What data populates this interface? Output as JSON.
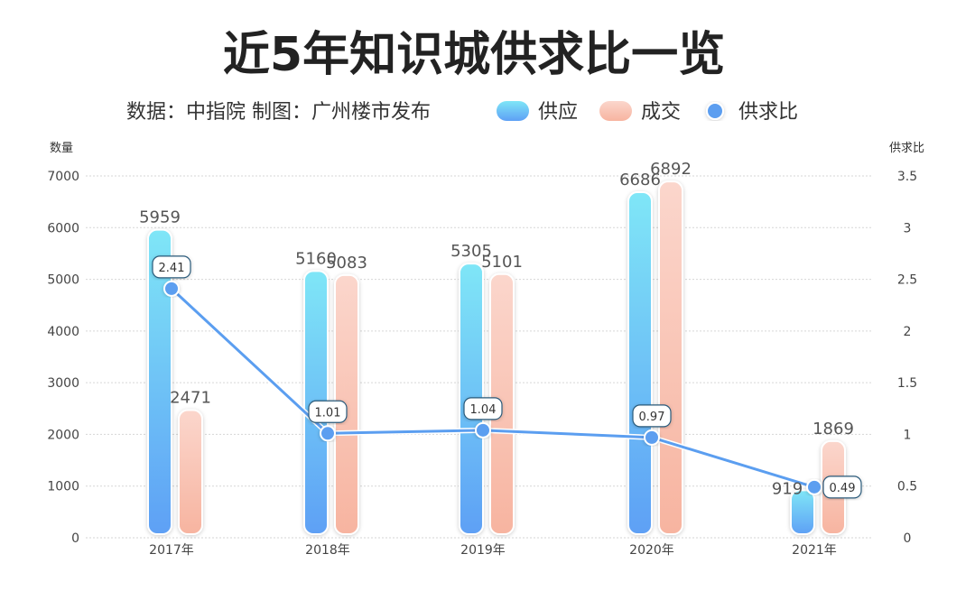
{
  "chart_data": {
    "type": "bar+line",
    "title": "近5年知识城供求比一览",
    "subtitle": "数据：中指院  制图：广州楼市发布",
    "categories": [
      "2017年",
      "2018年",
      "2019年",
      "2020年",
      "2021年"
    ],
    "series": [
      {
        "name": "供应",
        "type": "bar",
        "axis": "left",
        "values": [
          5959,
          5160,
          5305,
          6686,
          919
        ]
      },
      {
        "name": "成交",
        "type": "bar",
        "axis": "left",
        "values": [
          2471,
          5083,
          5101,
          6892,
          1869
        ]
      },
      {
        "name": "供求比",
        "type": "line",
        "axis": "right",
        "values": [
          2.41,
          1.01,
          1.04,
          0.97,
          0.49
        ]
      }
    ],
    "ylabel": "数量",
    "y2label": "供求比",
    "ylim": [
      0,
      7000
    ],
    "y2lim": [
      0,
      3.5
    ],
    "yticks": [
      "0",
      "1000",
      "2000",
      "3000",
      "4000",
      "5000",
      "6000",
      "7000"
    ],
    "y2ticks": [
      "0",
      "0.5",
      "1",
      "1.5",
      "2",
      "2.5",
      "3",
      "3.5"
    ],
    "grid": true,
    "legend_position": "top",
    "colors": {
      "supply_top": "#7fe6f7",
      "supply_bottom": "#5ea0f5",
      "deal_top": "#fbd6cc",
      "deal_bottom": "#f7b4a0",
      "ratio": "#5b9ef0"
    }
  }
}
